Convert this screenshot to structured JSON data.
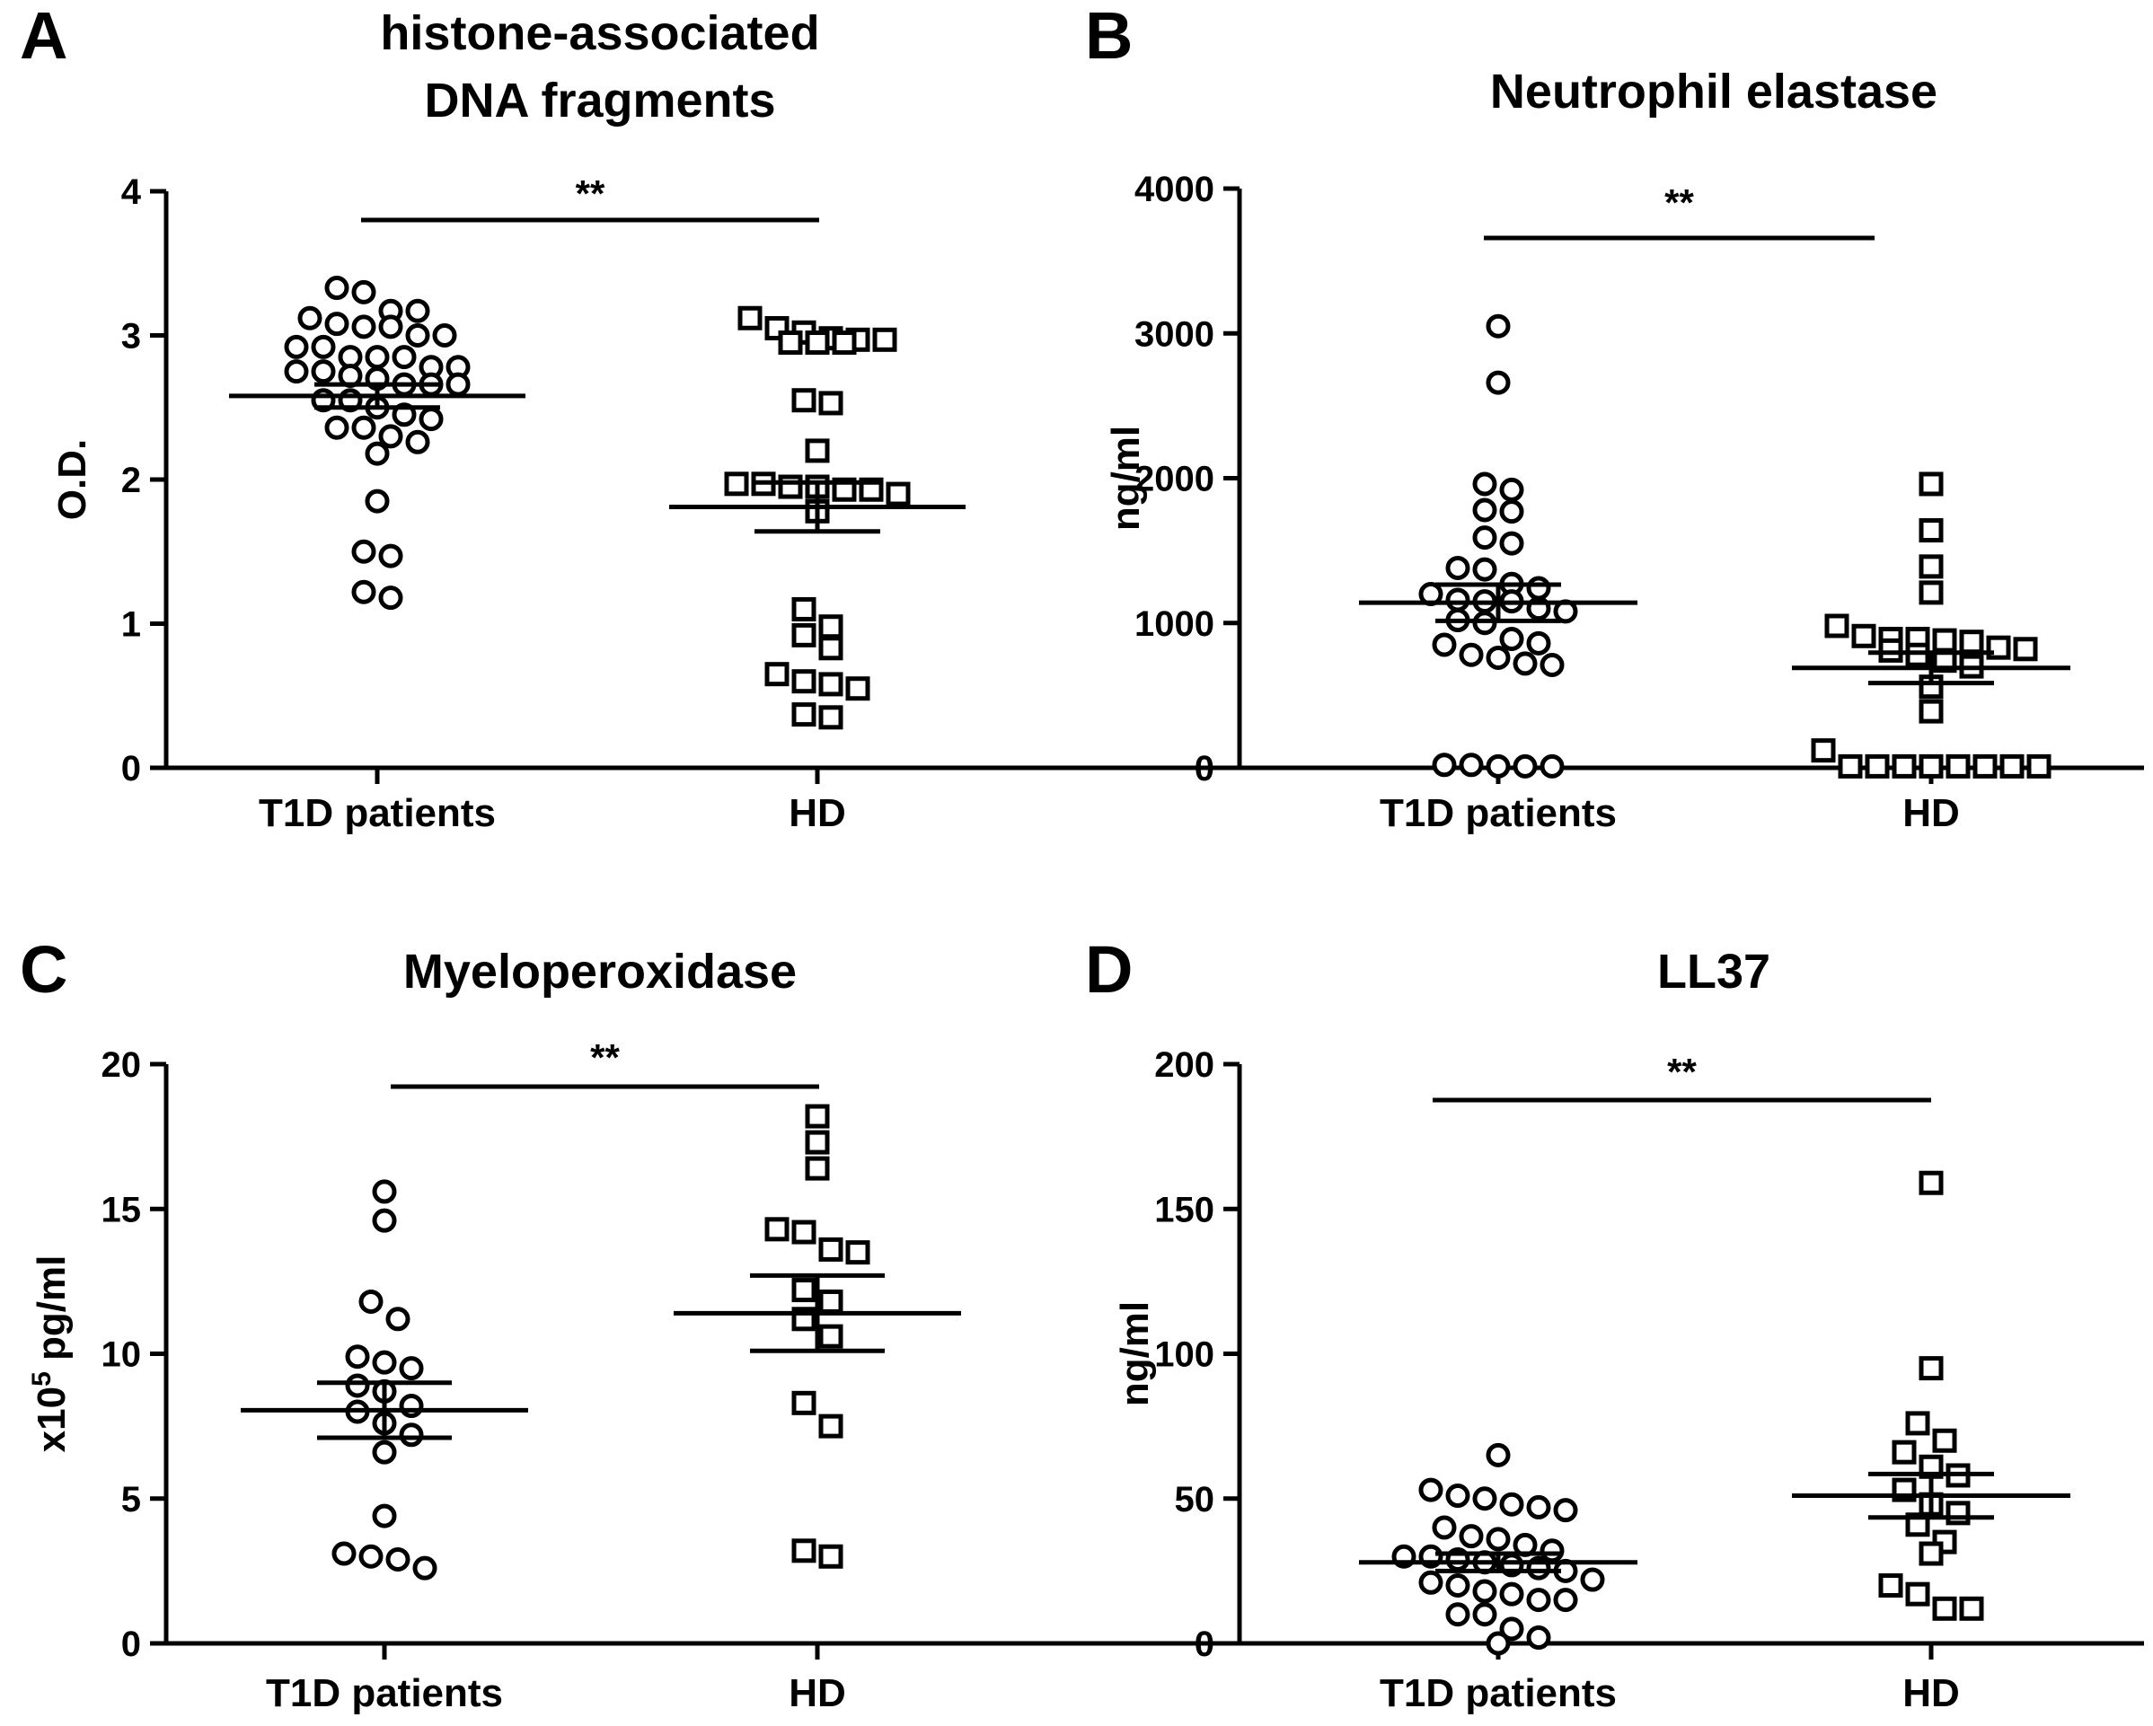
{
  "chart_data": [
    {
      "panel": "A",
      "type": "scatter",
      "title": [
        "histone-associated",
        "DNA fragments"
      ],
      "ylabel": "O.D.",
      "xlabel": "",
      "ylim": [
        0,
        4
      ],
      "yticks": [
        0,
        1,
        2,
        3,
        4
      ],
      "categories": [
        "T1D patients",
        "HD"
      ],
      "significance": "**",
      "series": [
        {
          "name": "T1D patients",
          "marker": "circle",
          "values": [
            3.33,
            3.3,
            3.17,
            3.17,
            3.08,
            3.06,
            3.12,
            3.06,
            3.0,
            3.0,
            2.92,
            2.92,
            2.85,
            2.85,
            2.85,
            2.78,
            2.78,
            2.75,
            2.75,
            2.72,
            2.7,
            2.66,
            2.66,
            2.66,
            2.55,
            2.55,
            2.5,
            2.45,
            2.42,
            2.36,
            2.36,
            2.3,
            2.26,
            2.18,
            1.85,
            1.5,
            1.47,
            1.22,
            1.18
          ],
          "mean": 2.58,
          "sem": 0.08
        },
        {
          "name": "HD",
          "marker": "square",
          "values": [
            3.12,
            3.05,
            3.02,
            2.98,
            2.97,
            2.97,
            2.95,
            2.95,
            2.95,
            2.55,
            2.53,
            2.2,
            1.97,
            1.97,
            1.95,
            1.95,
            1.93,
            1.93,
            1.9,
            1.78,
            1.1,
            0.98,
            0.92,
            0.83,
            0.65,
            0.6,
            0.58,
            0.55,
            0.37,
            0.35
          ],
          "mean": 1.81,
          "sem": 0.17
        }
      ]
    },
    {
      "panel": "B",
      "type": "scatter",
      "title": [
        "Neutrophil elastase"
      ],
      "ylabel": "ng/ml",
      "xlabel": "",
      "ylim": [
        0,
        4000
      ],
      "yticks": [
        0,
        1000,
        2000,
        3000,
        4000
      ],
      "categories": [
        "T1D patients",
        "HD"
      ],
      "significance": "**",
      "series": [
        {
          "name": "T1D patients",
          "marker": "circle",
          "values": [
            3050,
            2660,
            1960,
            1920,
            1780,
            1770,
            1590,
            1550,
            1380,
            1370,
            1270,
            1240,
            1200,
            1160,
            1150,
            1150,
            1100,
            1080,
            1020,
            1000,
            890,
            860,
            850,
            780,
            760,
            720,
            710,
            20,
            20,
            10,
            10,
            10
          ],
          "mean": 1140,
          "sem": 125
        },
        {
          "name": "HD",
          "marker": "square",
          "values": [
            1960,
            1640,
            1390,
            1210,
            980,
            910,
            890,
            890,
            880,
            870,
            830,
            820,
            810,
            780,
            740,
            700,
            560,
            390,
            120,
            10,
            10,
            10,
            10,
            10,
            10,
            10,
            10
          ],
          "mean": 690,
          "sem": 105
        }
      ]
    },
    {
      "panel": "C",
      "type": "scatter",
      "title": [
        "Myeloperoxidase"
      ],
      "ylabel": "x10",
      "ylabel_superscript": "5",
      "ylabel_suffix": " pg/ml",
      "xlabel": "",
      "ylim": [
        0,
        20
      ],
      "yticks": [
        0,
        5,
        10,
        15,
        20
      ],
      "categories": [
        "T1D patients",
        "HD"
      ],
      "significance": "**",
      "series": [
        {
          "name": "T1D patients",
          "marker": "circle",
          "values": [
            15.6,
            14.6,
            11.8,
            11.2,
            9.9,
            9.7,
            9.5,
            8.9,
            8.7,
            8.2,
            8.0,
            7.6,
            7.2,
            6.6,
            4.4,
            3.1,
            3.0,
            2.9,
            2.6
          ],
          "mean": 8.05,
          "sem": 0.95
        },
        {
          "name": "HD",
          "marker": "square",
          "values": [
            18.2,
            17.3,
            16.4,
            14.3,
            14.2,
            13.6,
            13.5,
            12.2,
            11.8,
            11.2,
            10.6,
            8.3,
            7.5,
            3.2,
            3.0
          ],
          "mean": 11.4,
          "sem": 1.3
        }
      ]
    },
    {
      "panel": "D",
      "type": "scatter",
      "title": [
        "LL37"
      ],
      "ylabel": "ng/ml",
      "xlabel": "",
      "ylim": [
        0,
        200
      ],
      "yticks": [
        0,
        50,
        100,
        150,
        200
      ],
      "categories": [
        "T1D patients",
        "HD"
      ],
      "significance": "**",
      "series": [
        {
          "name": "T1D patients",
          "marker": "circle",
          "values": [
            65,
            53,
            51,
            50,
            48,
            47,
            46,
            40,
            37,
            36,
            34,
            32,
            30,
            30,
            29,
            28,
            27,
            26,
            25,
            22,
            21,
            20,
            18,
            17,
            15,
            15,
            10,
            10,
            5,
            2,
            0
          ],
          "mean": 28,
          "sem": 3
        },
        {
          "name": "HD",
          "marker": "square",
          "values": [
            159,
            95,
            76,
            70,
            66,
            61,
            58,
            53,
            48,
            45,
            41,
            35,
            31,
            20,
            17,
            12,
            12
          ],
          "mean": 51,
          "sem": 7.5
        }
      ]
    }
  ]
}
